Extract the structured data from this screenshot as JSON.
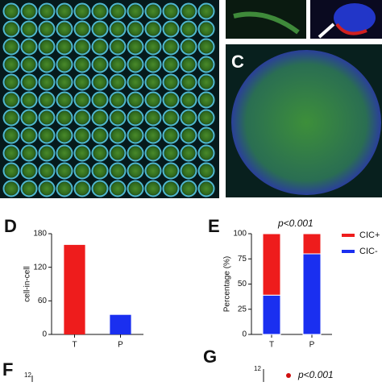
{
  "panels": {
    "c_label": "C",
    "d_label": "D",
    "e_label": "E",
    "f_label": "F",
    "g_label": "G",
    "f_tick": "12",
    "g_tick": "12",
    "g_annotation": "p<0.001"
  },
  "chart_data": [
    {
      "type": "bar",
      "ylabel": "cell-in-cell",
      "categories": [
        "T",
        "P"
      ],
      "values": [
        160,
        35
      ],
      "colors": [
        "#ee1c1c",
        "#1a2ff0"
      ],
      "ylim": [
        0,
        180
      ],
      "yticks": [
        0,
        60,
        120,
        180
      ]
    },
    {
      "type": "stacked_bar",
      "ylabel": "Percentage (%)",
      "annotation": "p<0.001",
      "categories": [
        "T",
        "P"
      ],
      "series": [
        {
          "name": "CIC-",
          "color": "#1a2ff0",
          "values": [
            39,
            80
          ]
        },
        {
          "name": "CIC+",
          "color": "#ee1c1c",
          "values": [
            61,
            20
          ]
        }
      ],
      "ylim": [
        0,
        100
      ],
      "yticks": [
        0,
        25,
        50,
        75,
        100
      ],
      "legend": "right"
    }
  ]
}
